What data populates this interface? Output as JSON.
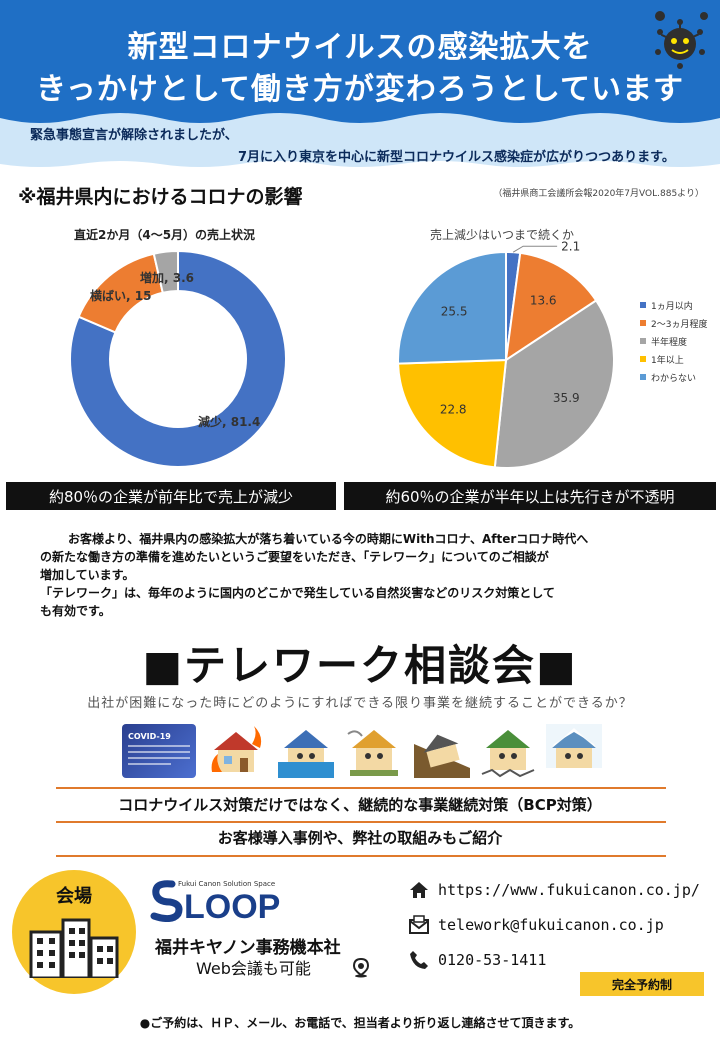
{
  "header": {
    "title_line1": "新型コロナウイルスの感染拡大を",
    "title_line2": "きっかけとして働き方が変わろうとしています"
  },
  "notice": {
    "line1": "緊急事態宣言が解除されましたが、",
    "line2": "7月に入り東京を中心に新型コロナウイルス感染症が広がりつつあります。"
  },
  "section": {
    "title": "※福井県内におけるコロナの影響",
    "source": "（福井県商工会議所会報2020年7月VOL.885より）"
  },
  "colors": {
    "blue": "#4472c4",
    "orange": "#ed7d31",
    "gray": "#a5a5a5",
    "yellow": "#ffc000",
    "lightblue": "#5b9bd5",
    "accent": "#e07a2c",
    "venue": "#f7c52b"
  },
  "chart_data": [
    {
      "type": "pie",
      "title": "直近2か月（4〜5月）の売上状況",
      "donut": true,
      "slices": [
        {
          "label": "減少",
          "value": 81.4,
          "display": "減少, 81.4",
          "color": "#4472c4"
        },
        {
          "label": "横ばい",
          "value": 15,
          "display": "横ばい, 15",
          "color": "#ed7d31"
        },
        {
          "label": "増加",
          "value": 3.6,
          "display": "増加, 3.6",
          "color": "#a5a5a5"
        }
      ]
    },
    {
      "type": "pie",
      "title": "売上減少はいつまで続くか",
      "legend": "right",
      "slices": [
        {
          "label": "1ヵ月以内",
          "value": 2.1,
          "color": "#4472c4"
        },
        {
          "label": "2〜3ヵ月程度",
          "value": 13.6,
          "color": "#ed7d31"
        },
        {
          "label": "半年程度",
          "value": 35.9,
          "color": "#a5a5a5"
        },
        {
          "label": "1年以上",
          "value": 22.8,
          "color": "#ffc000"
        },
        {
          "label": "わからない",
          "value": 25.5,
          "color": "#5b9bd5"
        }
      ]
    }
  ],
  "banners": {
    "left": "約80％の企業が前年比で売上が減少",
    "right": "約60％の企業が半年以上は先行きが不透明"
  },
  "body": {
    "p1a": "お客様より、福井県内の感染拡大が落ち着いている今の時期にWithコロナ、Afterコロナ時代へ",
    "p1b": "の新たな働き方の準備を進めたいというご要望をいただき、「テレワーク」についてのご相談が",
    "p1c": "増加しています。",
    "p2a": "「テレワーク」は、毎年のように国内のどこかで発生している自然災害などのリスク対策として",
    "p2b": "も有効です。"
  },
  "telework": {
    "title": "■テレワーク相談会■",
    "subtitle": "出社が困難になった時にどのようにすればできる限り事業を継続することができるか？",
    "card": "COVID-19"
  },
  "bcp": {
    "line1": "コロナウイルス対策だけではなく、継続的な事業継続対策（BCP対策）",
    "line2": "お客様導入事例や、弊社の取組みもご紹介"
  },
  "venue": {
    "label": "会場",
    "logo_small": "Fukui Canon Solution Space",
    "logo": "LOOP",
    "company": "福井キヤノン事務機本社",
    "web": "Web会議も可能"
  },
  "contact": {
    "url": "https://www.fukuicanon.co.jp/",
    "email": "telework@fukuicanon.co.jp",
    "phone": "0120-53-1411"
  },
  "reserve": "完全予約制",
  "footer": "●ご予約は、ＨＰ、メール、お電話で、担当者より折り返し連絡させて頂きます。"
}
